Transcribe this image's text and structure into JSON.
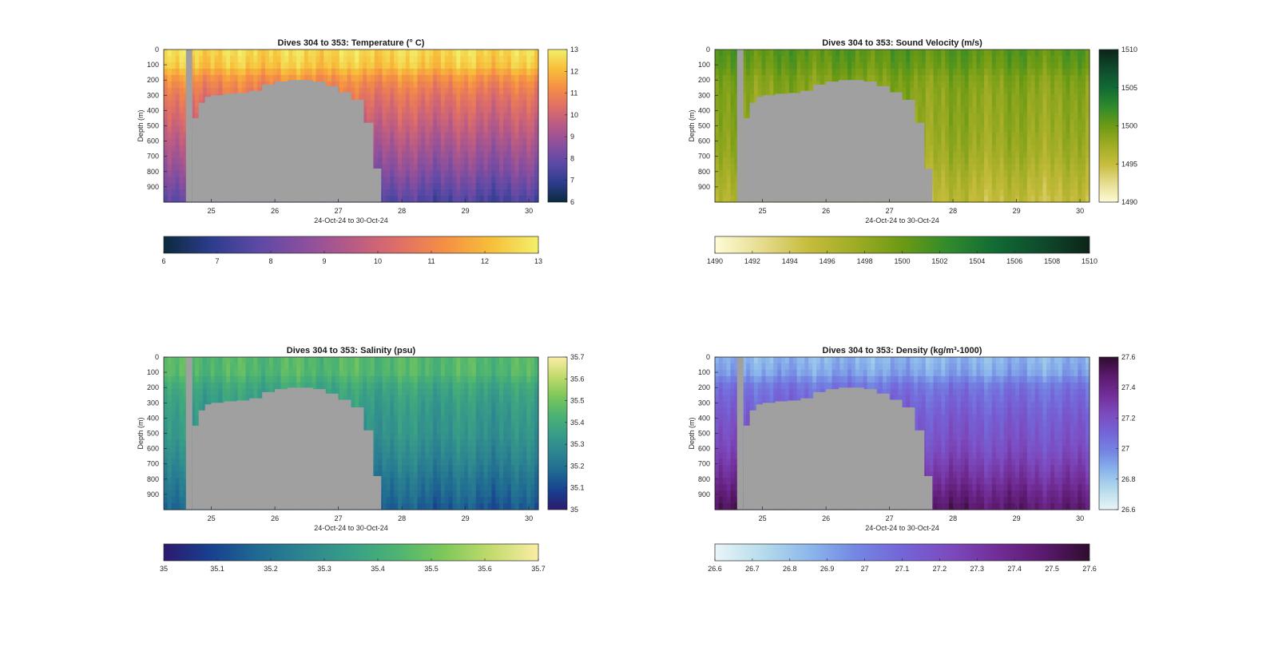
{
  "figure": {
    "background": "#ffffff",
    "nodata_color": "#a0a0a0"
  },
  "panels": [
    {
      "id": "temperature",
      "title": "Dives 304 to 353: Temperature (° C)",
      "colorbar_ticks": [
        "13",
        "12",
        "11",
        "10",
        "9",
        "8",
        "7",
        "6"
      ],
      "hbar_ticks": [
        "6",
        "7",
        "8",
        "9",
        "10",
        "11",
        "12",
        "13"
      ],
      "colormap": [
        "#0b2a3d",
        "#2c3c8c",
        "#5b49a6",
        "#8a4f9e",
        "#b75a86",
        "#df6e67",
        "#f58f44",
        "#f7bf3a",
        "#f2f06a"
      ]
    },
    {
      "id": "sound_velocity",
      "title": "Dives 304 to 353: Sound Velocity (m/s)",
      "colorbar_ticks": [
        "1510",
        "1505",
        "1500",
        "1495",
        "1490"
      ],
      "hbar_ticks": [
        "1490",
        "1492",
        "1494",
        "1496",
        "1498",
        "1500",
        "1502",
        "1504",
        "1506",
        "1508",
        "1510"
      ],
      "colormap": [
        "#fefbd6",
        "#e6dc8e",
        "#c6bc3c",
        "#9fac24",
        "#6c9a14",
        "#2f8a2c",
        "#116a34",
        "#0f4a2c",
        "#0b2418"
      ]
    },
    {
      "id": "salinity",
      "title": "Dives 304 to 353: Salinity (psu)",
      "colorbar_ticks": [
        "35.7",
        "35.6",
        "35.5",
        "35.4",
        "35.3",
        "35.2",
        "35.1",
        "35"
      ],
      "hbar_ticks": [
        "35",
        "35.1",
        "35.2",
        "35.3",
        "35.4",
        "35.5",
        "35.6",
        "35.7"
      ],
      "colormap": [
        "#2c1a6e",
        "#18408f",
        "#1f6a92",
        "#2d8590",
        "#389e87",
        "#4db471",
        "#7fc85a",
        "#c3db6e",
        "#fbeda4"
      ]
    },
    {
      "id": "density",
      "title": "Dives 304 to 353: Density (kg/m³-1000)",
      "colorbar_ticks": [
        "27.6",
        "27.4",
        "27.2",
        "27",
        "26.8",
        "26.6"
      ],
      "hbar_ticks": [
        "26.6",
        "26.7",
        "26.8",
        "26.9",
        "27",
        "27.1",
        "27.2",
        "27.3",
        "27.4",
        "27.5",
        "27.6"
      ],
      "colormap": [
        "#e9f5f8",
        "#b7dcec",
        "#8cb8eb",
        "#7487e3",
        "#7465d8",
        "#7c4bbf",
        "#722e98",
        "#5b1a6e",
        "#2f0c2e"
      ]
    }
  ],
  "axes": {
    "ylabel": "Depth (m)",
    "xlabel": "24-Oct-24 to 30-Oct-24",
    "x_ticks": [
      "25",
      "26",
      "27",
      "28",
      "29",
      "30"
    ],
    "y_ticks": [
      "0",
      "100",
      "200",
      "300",
      "400",
      "500",
      "600",
      "700",
      "800",
      "900"
    ]
  },
  "chart_data": [
    {
      "type": "heatmap",
      "title": "Dives 304 to 353: Temperature (° C)",
      "xlabel": "24-Oct-24 to 30-Oct-24",
      "ylabel": "Depth (m)",
      "xlim": [
        24.25,
        30.15
      ],
      "ylim": [
        1000,
        0
      ],
      "clim": [
        6,
        13
      ],
      "x_ticks": [
        25,
        26,
        27,
        28,
        29,
        30
      ],
      "y_ticks": [
        0,
        100,
        200,
        300,
        400,
        500,
        600,
        700,
        800,
        900
      ],
      "colorbar": "right",
      "colorbar_h": "below",
      "profile_depths": [
        0,
        100,
        200,
        300,
        400,
        500,
        600,
        700,
        800,
        900,
        1000
      ],
      "profile_values": [
        12.6,
        12.3,
        11.2,
        10.6,
        10.2,
        9.8,
        9.4,
        9.0,
        8.6,
        8.1,
        7.6
      ]
    },
    {
      "type": "heatmap",
      "title": "Dives 304 to 353: Sound Velocity (m/s)",
      "xlabel": "24-Oct-24 to 30-Oct-24",
      "ylabel": "Depth (m)",
      "xlim": [
        24.25,
        30.15
      ],
      "ylim": [
        1000,
        0
      ],
      "clim": [
        1490,
        1510
      ],
      "x_ticks": [
        25,
        26,
        27,
        28,
        29,
        30
      ],
      "y_ticks": [
        0,
        100,
        200,
        300,
        400,
        500,
        600,
        700,
        800,
        900
      ],
      "colorbar": "right",
      "colorbar_h": "below",
      "profile_depths": [
        0,
        100,
        200,
        300,
        400,
        500,
        600,
        700,
        800,
        900,
        1000
      ],
      "profile_values": [
        1500.8,
        1500.2,
        1499.0,
        1498.6,
        1498.4,
        1498.2,
        1497.9,
        1497.5,
        1496.8,
        1496.2,
        1495.6
      ]
    },
    {
      "type": "heatmap",
      "title": "Dives 304 to 353: Salinity (psu)",
      "xlabel": "24-Oct-24 to 30-Oct-24",
      "ylabel": "Depth (m)",
      "xlim": [
        24.25,
        30.15
      ],
      "ylim": [
        1000,
        0
      ],
      "clim": [
        35,
        35.7
      ],
      "x_ticks": [
        25,
        26,
        27,
        28,
        29,
        30
      ],
      "y_ticks": [
        0,
        100,
        200,
        300,
        400,
        500,
        600,
        700,
        800,
        900
      ],
      "colorbar": "right",
      "colorbar_h": "below",
      "profile_depths": [
        0,
        100,
        200,
        300,
        400,
        500,
        600,
        700,
        800,
        900,
        1000
      ],
      "profile_values": [
        35.45,
        35.45,
        35.38,
        35.35,
        35.33,
        35.32,
        35.29,
        35.26,
        35.22,
        35.19,
        35.15
      ]
    },
    {
      "type": "heatmap",
      "title": "Dives 304 to 353: Density (kg/m³-1000)",
      "xlabel": "24-Oct-24 to 30-Oct-24",
      "ylabel": "Depth (m)",
      "xlim": [
        24.25,
        30.15
      ],
      "ylim": [
        1000,
        0
      ],
      "clim": [
        26.6,
        27.6
      ],
      "x_ticks": [
        25,
        26,
        27,
        28,
        29,
        30
      ],
      "y_ticks": [
        0,
        100,
        200,
        300,
        400,
        500,
        600,
        700,
        800,
        900
      ],
      "colorbar": "right",
      "colorbar_h": "below",
      "profile_depths": [
        0,
        100,
        200,
        300,
        400,
        500,
        600,
        700,
        800,
        900,
        1000
      ],
      "profile_values": [
        26.85,
        26.9,
        27.05,
        27.1,
        27.15,
        27.18,
        27.22,
        27.28,
        27.35,
        27.43,
        27.5
      ]
    }
  ],
  "gap_days": [
    24.6,
    24.7
  ],
  "seamount_profile_days": [
    24.7,
    24.8,
    24.9,
    25.0,
    25.2,
    25.4,
    25.6,
    25.8,
    26.0,
    26.2,
    26.4,
    26.6,
    26.8,
    27.0,
    27.2,
    27.4,
    27.55
  ],
  "seamount_profile_depths": [
    450,
    350,
    310,
    300,
    290,
    285,
    270,
    230,
    210,
    200,
    200,
    210,
    240,
    280,
    330,
    480,
    780
  ]
}
